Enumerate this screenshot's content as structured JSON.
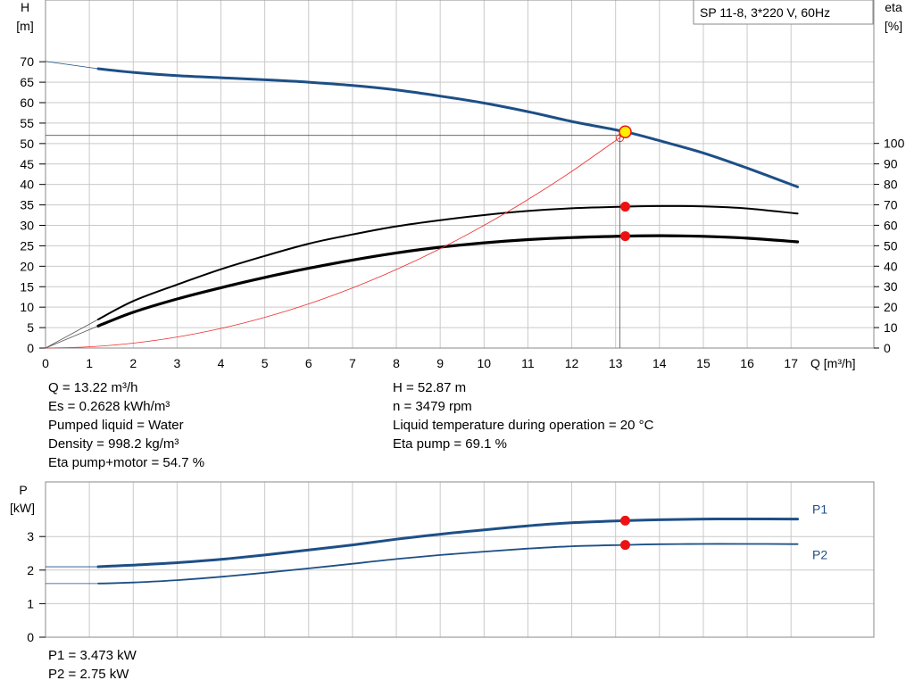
{
  "chart_data": [
    {
      "type": "line",
      "title": "SP 11-8, 3*220 V, 60Hz",
      "xlabel": "Q [m³/h]",
      "ylabel_left": [
        "H",
        "[m]"
      ],
      "ylabel_right": [
        "eta",
        "[%]"
      ],
      "xlim": [
        0,
        18
      ],
      "ylim": [
        0,
        75
      ],
      "ylim_right": [
        0,
        100
      ],
      "x_ticks": [
        0,
        1,
        2,
        3,
        4,
        5,
        6,
        7,
        8,
        9,
        10,
        11,
        12,
        13,
        14,
        15,
        16,
        17
      ],
      "y_ticks": [
        0,
        5,
        10,
        15,
        20,
        25,
        30,
        35,
        40,
        45,
        50,
        55,
        60,
        65,
        70
      ],
      "y_ticks_right": [
        0,
        10,
        20,
        30,
        40,
        50,
        60,
        70,
        80,
        90,
        100
      ],
      "grid": true,
      "series": [
        {
          "key": "H",
          "axis": "left",
          "color": "#1d4f86",
          "width": 3,
          "extension": [
            [
              0,
              70.1
            ],
            [
              1.2,
              68.3
            ]
          ],
          "points": [
            [
              1.2,
              68.3
            ],
            [
              2,
              67.4
            ],
            [
              3,
              66.6
            ],
            [
              4,
              66.1
            ],
            [
              5,
              65.6
            ],
            [
              6,
              65.0
            ],
            [
              7,
              64.2
            ],
            [
              8,
              63.1
            ],
            [
              9,
              61.6
            ],
            [
              10,
              59.9
            ],
            [
              11,
              57.8
            ],
            [
              12,
              55.4
            ],
            [
              13.22,
              52.87
            ],
            [
              14,
              50.7
            ],
            [
              15,
              47.7
            ],
            [
              16,
              44.0
            ],
            [
              17.15,
              39.4
            ]
          ]
        },
        {
          "key": "eta_pump",
          "axis": "right",
          "color": "#000000",
          "width": 2,
          "extension": [
            [
              0,
              0
            ],
            [
              1.2,
              14
            ]
          ],
          "points": [
            [
              1.2,
              14
            ],
            [
              2,
              23
            ],
            [
              3,
              31
            ],
            [
              4,
              38.5
            ],
            [
              5,
              45
            ],
            [
              6,
              51
            ],
            [
              7,
              55.5
            ],
            [
              8,
              59.5
            ],
            [
              9,
              62.5
            ],
            [
              10,
              65
            ],
            [
              11,
              67
            ],
            [
              12,
              68.3
            ],
            [
              13.22,
              69.1
            ],
            [
              14,
              69.4
            ],
            [
              15,
              69.2
            ],
            [
              16,
              68.2
            ],
            [
              17.15,
              65.7
            ]
          ]
        },
        {
          "key": "eta_total",
          "axis": "right",
          "color": "#000000",
          "width": 3.2,
          "extension": [
            [
              0,
              0
            ],
            [
              1.2,
              10.8
            ]
          ],
          "points": [
            [
              1.2,
              10.8
            ],
            [
              2,
              17.5
            ],
            [
              3,
              24
            ],
            [
              4,
              29.5
            ],
            [
              5,
              34.5
            ],
            [
              6,
              39
            ],
            [
              7,
              43
            ],
            [
              8,
              46.5
            ],
            [
              9,
              49.3
            ],
            [
              10,
              51.4
            ],
            [
              11,
              53
            ],
            [
              12,
              54
            ],
            [
              13.22,
              54.7
            ],
            [
              14,
              54.9
            ],
            [
              15,
              54.6
            ],
            [
              16,
              53.7
            ],
            [
              17.15,
              51.9
            ]
          ]
        },
        {
          "key": "system",
          "axis": "left",
          "color": "#ee2d2d",
          "width": 0.8,
          "points": [
            [
              0,
              0
            ],
            [
              1,
              0.3
            ],
            [
              2,
              1.2
            ],
            [
              3,
              2.7
            ],
            [
              4,
              4.8
            ],
            [
              5,
              7.5
            ],
            [
              6,
              10.8
            ],
            [
              7,
              14.7
            ],
            [
              8,
              19.2
            ],
            [
              9,
              24.3
            ],
            [
              10,
              30.0
            ],
            [
              11,
              36.3
            ],
            [
              12,
              43.2
            ],
            [
              13.22,
              52.4
            ]
          ]
        }
      ],
      "duty_point": {
        "q": 13.22,
        "h": 52.87,
        "h_line": 52
      }
    },
    {
      "type": "line",
      "xlabel": "",
      "ylabel_left": [
        "P",
        "[kW]"
      ],
      "xlim": [
        0,
        18
      ],
      "ylim": [
        0,
        4
      ],
      "y_ticks": [
        0,
        1,
        2,
        3
      ],
      "grid": true,
      "series": [
        {
          "key": "P1",
          "name": "P1",
          "color": "#1d4f86",
          "width": 3,
          "extension": [
            [
              0,
              2.1
            ],
            [
              1.2,
              2.1
            ]
          ],
          "points": [
            [
              1.2,
              2.1
            ],
            [
              2,
              2.15
            ],
            [
              3,
              2.22
            ],
            [
              4,
              2.32
            ],
            [
              5,
              2.45
            ],
            [
              6,
              2.6
            ],
            [
              7,
              2.75
            ],
            [
              8,
              2.92
            ],
            [
              9,
              3.07
            ],
            [
              10,
              3.2
            ],
            [
              11,
              3.32
            ],
            [
              12,
              3.41
            ],
            [
              13.22,
              3.473
            ],
            [
              14,
              3.5
            ],
            [
              15,
              3.52
            ],
            [
              16,
              3.525
            ],
            [
              17.15,
              3.52
            ]
          ]
        },
        {
          "key": "P2",
          "name": "P2",
          "color": "#1d4f86",
          "width": 1.8,
          "extension": [
            [
              0,
              1.6
            ],
            [
              1.2,
              1.6
            ]
          ],
          "points": [
            [
              1.2,
              1.6
            ],
            [
              2,
              1.63
            ],
            [
              3,
              1.7
            ],
            [
              4,
              1.8
            ],
            [
              5,
              1.92
            ],
            [
              6,
              2.05
            ],
            [
              7,
              2.19
            ],
            [
              8,
              2.33
            ],
            [
              9,
              2.45
            ],
            [
              10,
              2.55
            ],
            [
              11,
              2.64
            ],
            [
              12,
              2.71
            ],
            [
              13.22,
              2.75
            ],
            [
              14,
              2.77
            ],
            [
              15,
              2.78
            ],
            [
              16,
              2.78
            ],
            [
              17.15,
              2.775
            ]
          ]
        }
      ]
    }
  ],
  "info_left": [
    "Q = 13.22 m³/h",
    "Es = 0.2628 kWh/m³",
    "Pumped liquid = Water",
    "Density = 998.2 kg/m³",
    "Eta pump+motor = 54.7 %"
  ],
  "info_right": [
    "H = 52.87 m",
    "n = 3479 rpm",
    "Liquid temperature during operation = 20 °C",
    "Eta pump = 69.1 %"
  ],
  "power_info": [
    "P1 = 3.473 kW",
    "P2 = 2.75 kW"
  ],
  "colors": {
    "curve_blue": "#1d4f86",
    "grid": "#c9c9c9",
    "duty_marker": "#ee1111",
    "duty_point_fill": "#ffee00"
  }
}
